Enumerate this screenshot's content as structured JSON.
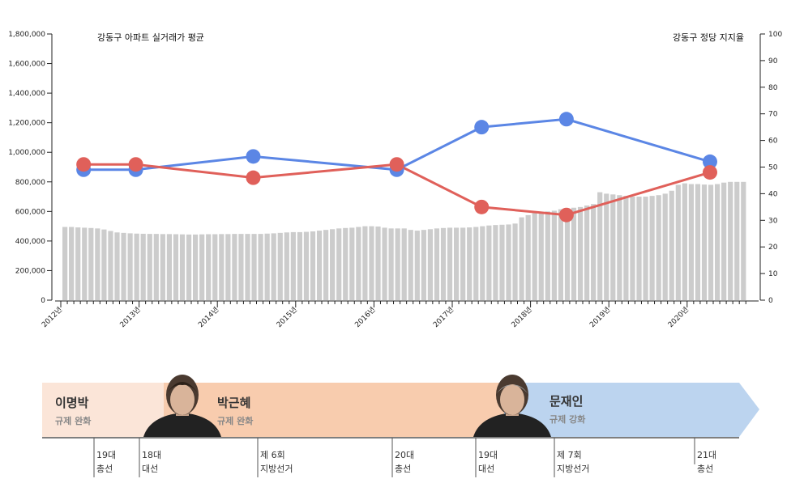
{
  "chart_data": {
    "type": "bar+line",
    "left_axis_title": "강동구 아파트 실거래가 평균",
    "right_axis_title": "강동구 정당 지지율",
    "left_ticks": [
      "0",
      "200,000",
      "400,000",
      "600,000",
      "800,000",
      "1,000,000",
      "1,200,000",
      "1,400,000",
      "1,600,000",
      "1,800,000"
    ],
    "right_ticks": [
      "0",
      "10",
      "20",
      "30",
      "40",
      "50",
      "60",
      "70",
      "80",
      "90",
      "100"
    ],
    "ylim_left": [
      0,
      1800000
    ],
    "ylim_right": [
      0,
      100
    ],
    "x_labels": [
      "2012년",
      "2013년",
      "2014년",
      "2015년",
      "2016년",
      "2017년",
      "2018년",
      "2019년",
      "2020년"
    ],
    "bar_start": "2012-01",
    "bar_values": [
      495000,
      495000,
      492000,
      490000,
      488000,
      485000,
      478000,
      468000,
      458000,
      455000,
      452000,
      450000,
      449000,
      448000,
      448000,
      447000,
      447000,
      446000,
      445000,
      444000,
      444000,
      445000,
      446000,
      446000,
      447000,
      447000,
      448000,
      448000,
      448000,
      448000,
      448000,
      450000,
      452000,
      455000,
      458000,
      460000,
      460000,
      462000,
      465000,
      470000,
      475000,
      480000,
      485000,
      488000,
      490000,
      495000,
      500000,
      500000,
      498000,
      490000,
      485000,
      485000,
      485000,
      475000,
      470000,
      475000,
      480000,
      485000,
      488000,
      490000,
      490000,
      490000,
      492000,
      495000,
      500000,
      505000,
      508000,
      510000,
      512000,
      518000,
      560000,
      575000,
      590000,
      595000,
      600000,
      605000,
      615000,
      620000,
      625000,
      630000,
      640000,
      650000,
      730000,
      720000,
      715000,
      710000,
      705000,
      700000,
      700000,
      700000,
      705000,
      710000,
      720000,
      740000,
      780000,
      790000,
      785000,
      785000,
      782000,
      780000,
      785000,
      795000,
      800000,
      800000,
      800000
    ],
    "series": [
      {
        "name": "blue",
        "color": "#5b86e5",
        "points": [
          {
            "x": "2012-04",
            "y": 49
          },
          {
            "x": "2012-12",
            "y": 49
          },
          {
            "x": "2014-06",
            "y": 54
          },
          {
            "x": "2016-04",
            "y": 49
          },
          {
            "x": "2017-05",
            "y": 65
          },
          {
            "x": "2018-06",
            "y": 68
          },
          {
            "x": "2020-04",
            "y": 52
          }
        ]
      },
      {
        "name": "red",
        "color": "#e0605a",
        "points": [
          {
            "x": "2012-04",
            "y": 51
          },
          {
            "x": "2012-12",
            "y": 51
          },
          {
            "x": "2014-06",
            "y": 46
          },
          {
            "x": "2016-04",
            "y": 51
          },
          {
            "x": "2017-05",
            "y": 35
          },
          {
            "x": "2018-06",
            "y": 32
          },
          {
            "x": "2020-04",
            "y": 48
          }
        ]
      }
    ]
  },
  "timeline": {
    "presidents": [
      {
        "name": "이명박",
        "policy": "규제 완화",
        "color": "#fbe5d8"
      },
      {
        "name": "박근혜",
        "policy": "규제 완화",
        "color": "#f8ccae"
      },
      {
        "name": "문재인",
        "policy": "규제 강화",
        "color": "#bcd4ef"
      }
    ],
    "events": [
      {
        "line1": "19대",
        "line2": "총선"
      },
      {
        "line1": "18대",
        "line2": "대선"
      },
      {
        "line1": "제 6회",
        "line2": "지방선거"
      },
      {
        "line1": "20대",
        "line2": "총선"
      },
      {
        "line1": "19대",
        "line2": "대선"
      },
      {
        "line1": "제 7회",
        "line2": "지방선거"
      },
      {
        "line1": "21대",
        "line2": "총선"
      }
    ]
  }
}
